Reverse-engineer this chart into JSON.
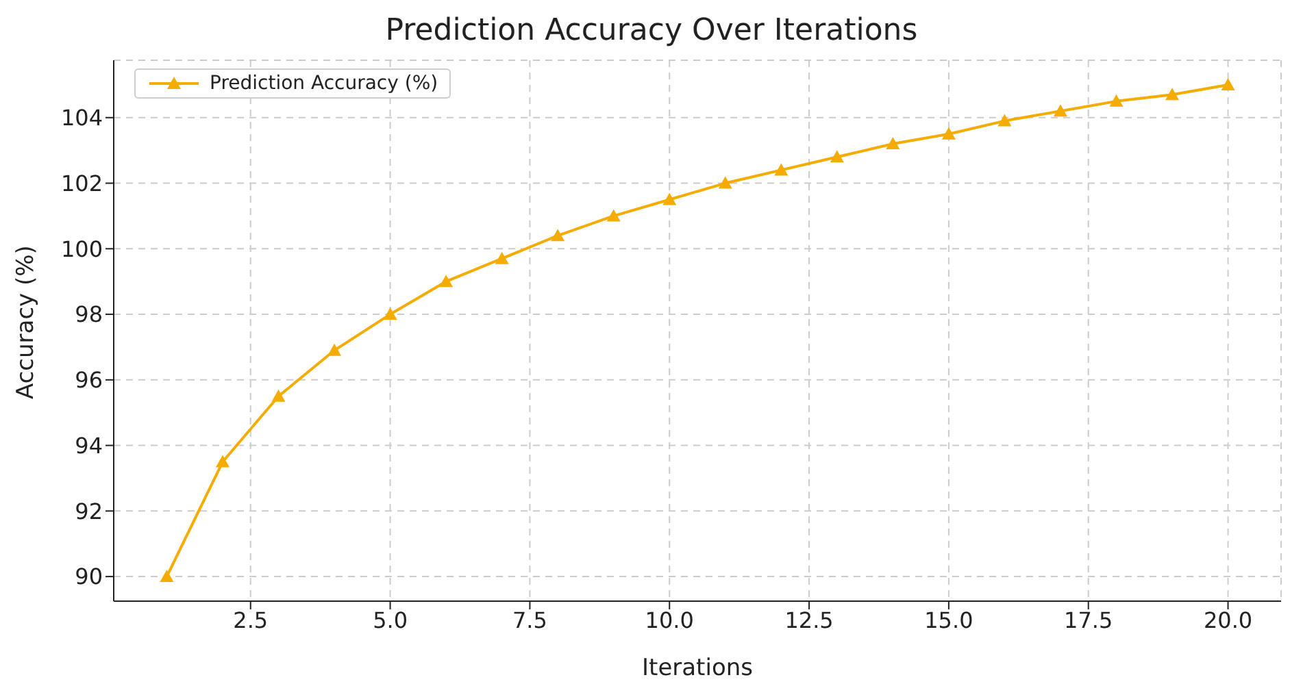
{
  "chart_data": {
    "type": "line",
    "title": "Prediction Accuracy Over Iterations",
    "xlabel": "Iterations",
    "ylabel": "Accuracy (%)",
    "x": [
      1,
      2,
      3,
      4,
      5,
      6,
      7,
      8,
      9,
      10,
      11,
      12,
      13,
      14,
      15,
      16,
      17,
      18,
      19,
      20
    ],
    "series": [
      {
        "name": "Prediction Accuracy (%)",
        "color": "#f5ac00",
        "values": [
          90.0,
          93.5,
          95.5,
          96.9,
          98.0,
          99.0,
          99.7,
          100.4,
          101.0,
          101.5,
          102.0,
          102.4,
          102.8,
          103.2,
          103.5,
          103.9,
          104.2,
          104.5,
          104.7,
          105.0
        ]
      }
    ],
    "xlim": [
      0.05,
      20.95
    ],
    "ylim": [
      89.25,
      105.75
    ],
    "xticks": [
      {
        "value": 2.5,
        "label": "2.5"
      },
      {
        "value": 5,
        "label": "5.0"
      },
      {
        "value": 7.5,
        "label": "7.5"
      },
      {
        "value": 10,
        "label": "10.0"
      },
      {
        "value": 12.5,
        "label": "12.5"
      },
      {
        "value": 15,
        "label": "15.0"
      },
      {
        "value": 17.5,
        "label": "17.5"
      },
      {
        "value": 20,
        "label": "20.0"
      }
    ],
    "yticks": [
      90,
      92,
      94,
      96,
      98,
      100,
      102,
      104
    ],
    "grid": true,
    "legend": "top left",
    "marker": "triangle",
    "line_style": "solid"
  }
}
